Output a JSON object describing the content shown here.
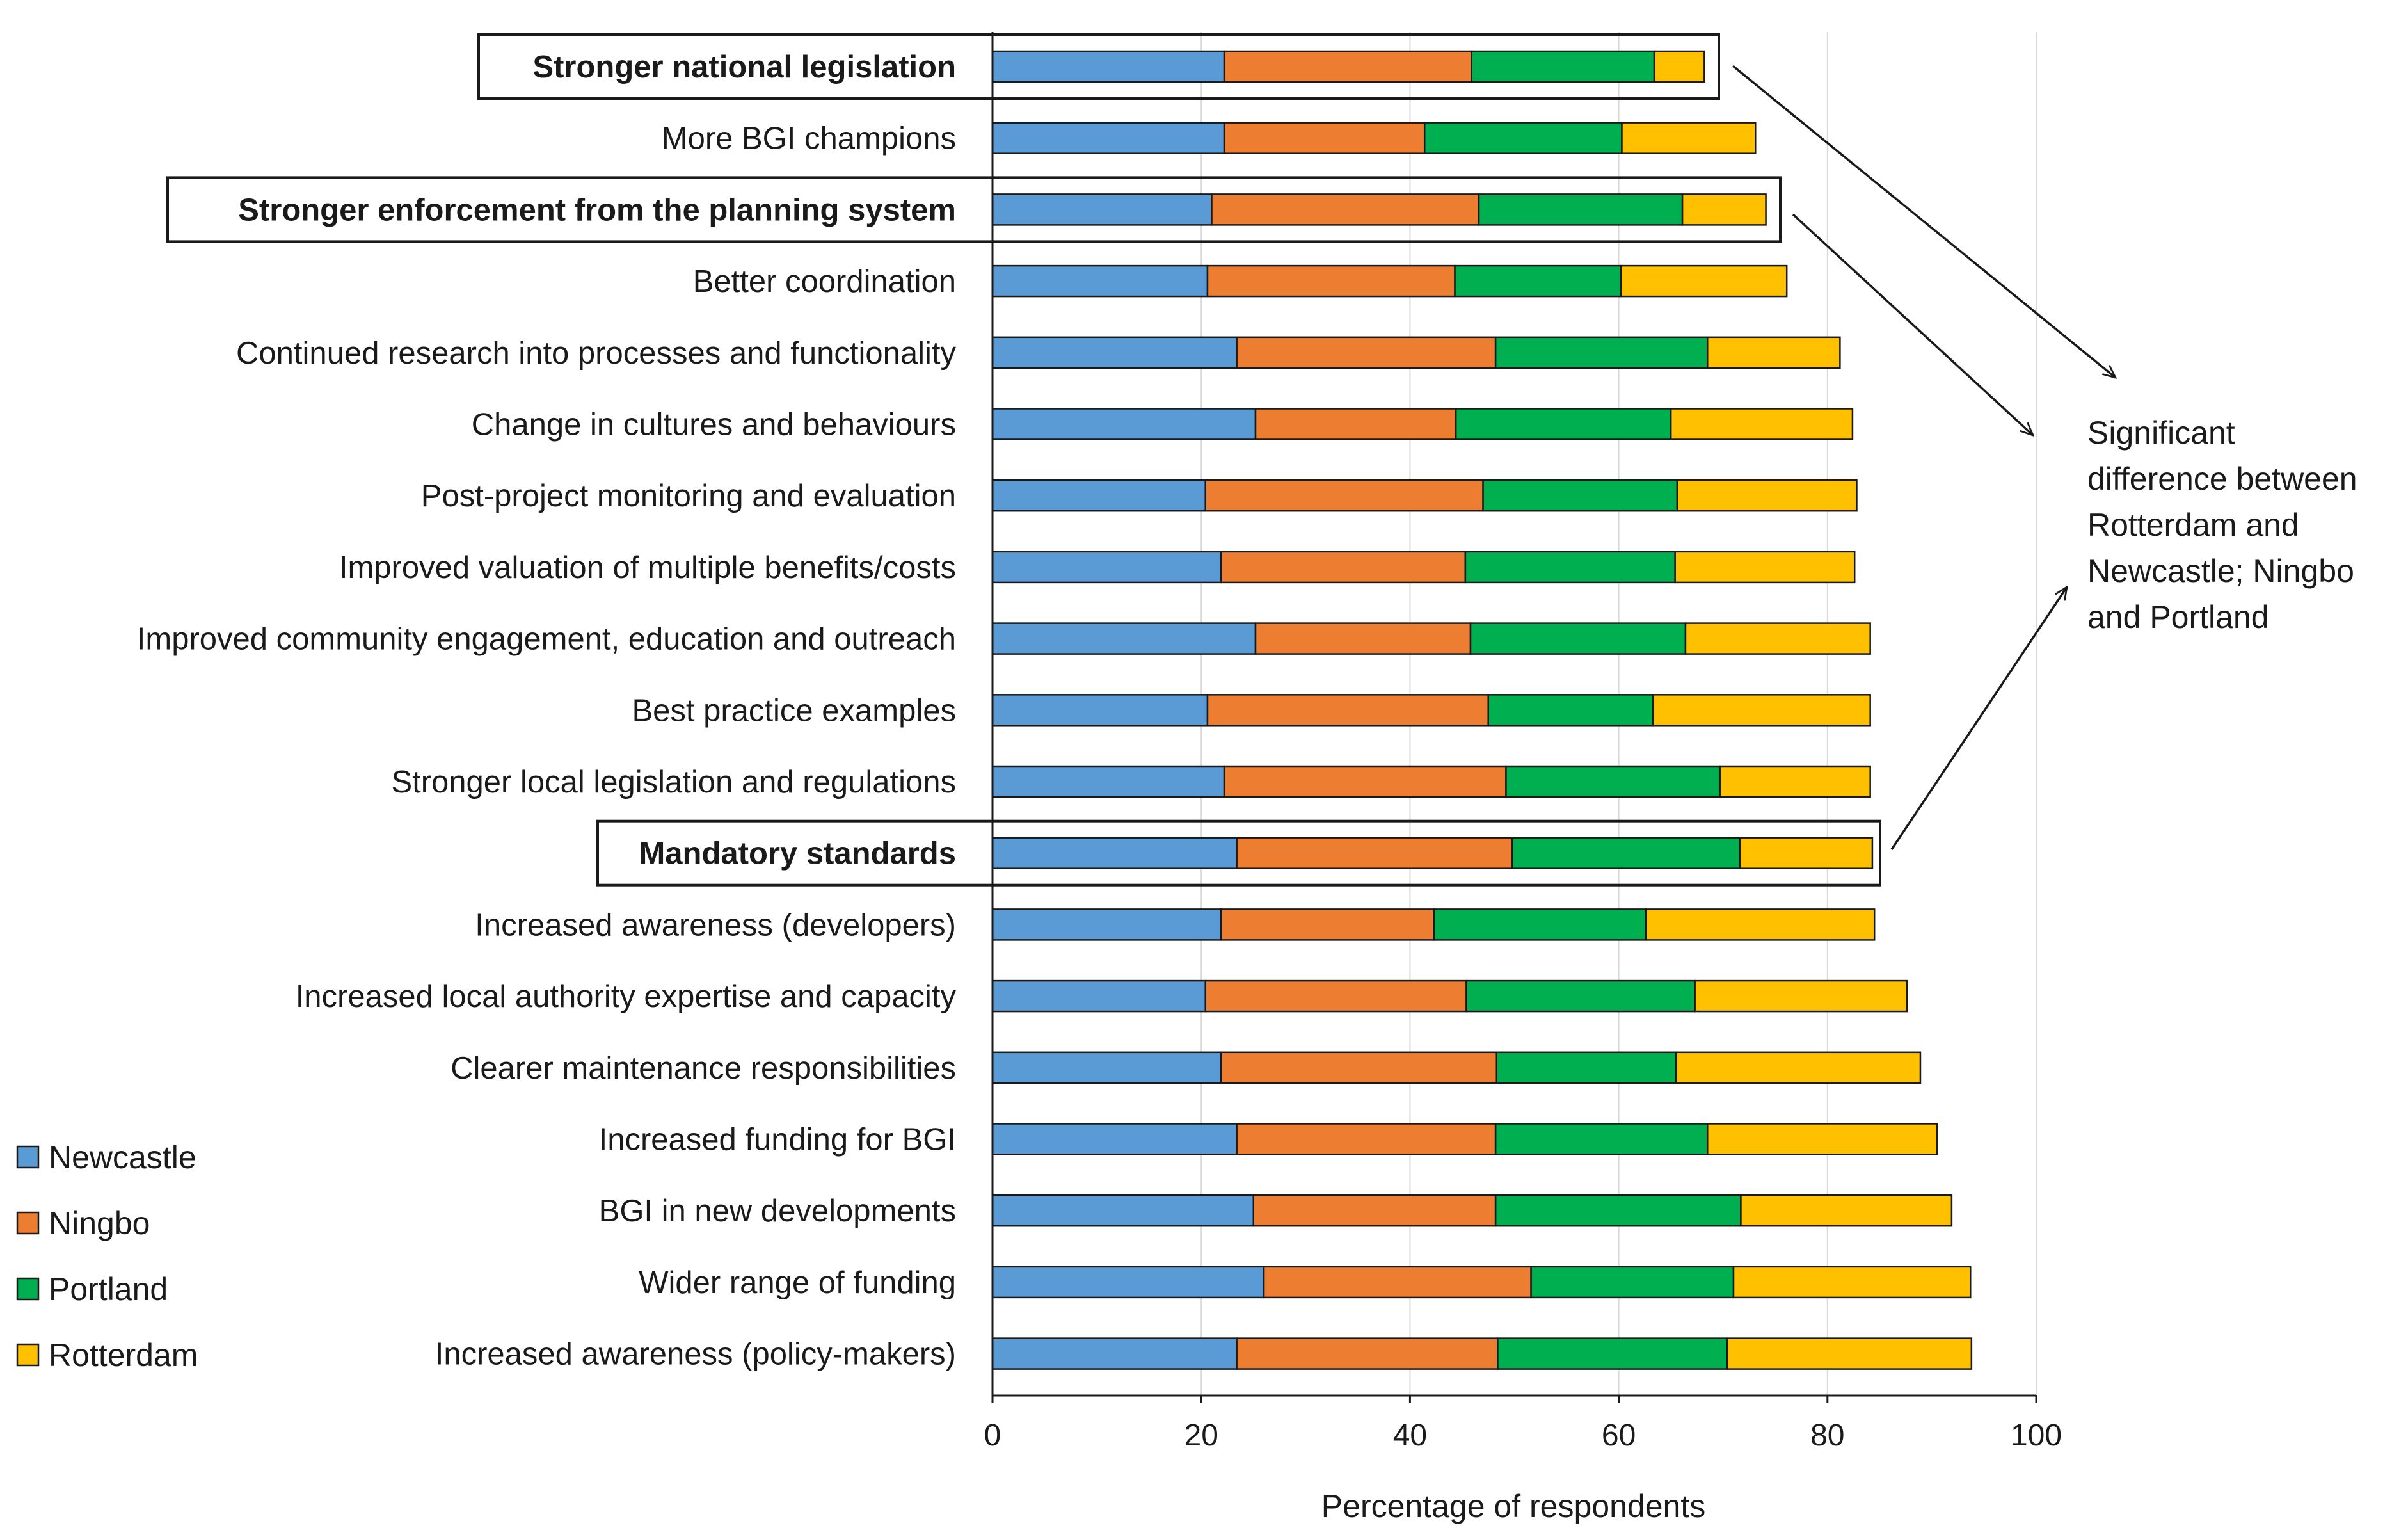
{
  "chart_data": {
    "type": "bar",
    "orientation": "horizontal",
    "stacked": true,
    "xlabel": "Percentage of respondents",
    "ylabel": "",
    "xlim": [
      0,
      100
    ],
    "xticks": [
      "0",
      "20",
      "40",
      "60",
      "80",
      "100"
    ],
    "grid": true,
    "legend_position": "bottom-left",
    "categories": [
      "Stronger national legislation",
      "More BGI champions",
      "Stronger enforcement from the planning system",
      "Better coordination",
      "Continued research into processes and functionality",
      "Change in cultures and behaviours",
      "Post-project monitoring and evaluation",
      "Improved valuation of multiple benefits/costs",
      "Improved community engagement, education and outreach",
      "Best practice examples",
      "Stronger local legislation and regulations",
      "Mandatory standards",
      "Increased awareness (developers)",
      "Increased local authority expertise and capacity",
      "Clearer maintenance responsibilities",
      "Increased funding for BGI",
      "BGI in new developments",
      "Wider range of funding",
      "Increased awareness (policy-makers)"
    ],
    "highlighted": [
      "Stronger national legislation",
      "Stronger enforcement from the planning system",
      "Mandatory standards"
    ],
    "series": [
      {
        "name": "Newcastle",
        "color": "#5B9BD5",
        "values": [
          22.2,
          22.2,
          21.0,
          20.6,
          23.4,
          25.2,
          20.4,
          21.9,
          25.2,
          20.6,
          22.2,
          23.4,
          21.9,
          20.4,
          21.9,
          23.4,
          25.0,
          26.0,
          23.4
        ]
      },
      {
        "name": "Ningbo",
        "color": "#ED7D31",
        "values": [
          23.7,
          19.2,
          25.6,
          23.7,
          24.8,
          19.2,
          26.6,
          23.4,
          20.6,
          26.9,
          27.0,
          26.4,
          20.4,
          25.0,
          26.4,
          24.8,
          23.2,
          25.6,
          25.0
        ]
      },
      {
        "name": "Portland",
        "color": "#00B050",
        "values": [
          17.5,
          18.9,
          19.5,
          15.9,
          20.3,
          20.6,
          18.6,
          20.1,
          20.6,
          15.8,
          20.5,
          21.8,
          20.3,
          21.9,
          17.2,
          20.3,
          23.5,
          19.4,
          22.0
        ]
      },
      {
        "name": "Rotterdam",
        "color": "#FFC000",
        "values": [
          4.8,
          12.8,
          8.0,
          15.9,
          12.7,
          17.4,
          17.2,
          17.2,
          17.7,
          20.8,
          14.4,
          12.7,
          21.9,
          20.3,
          23.4,
          22.0,
          20.2,
          22.7,
          23.4
        ]
      }
    ],
    "annotation": {
      "lines": [
        "Significant",
        "difference between",
        "Rotterdam and",
        "Newcastle; Ningbo",
        "and Portland"
      ]
    }
  }
}
